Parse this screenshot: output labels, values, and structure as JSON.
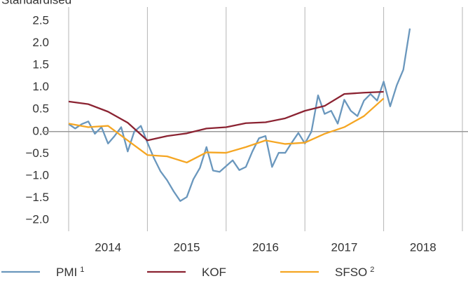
{
  "chart_data": {
    "type": "line",
    "y_axis_label": "Standardised",
    "xlim": [
      2014,
      2019
    ],
    "xticks": [
      2014,
      2015,
      2016,
      2017,
      2018
    ],
    "ylim": [
      -2.3,
      2.75
    ],
    "yticks": [
      2.5,
      {
        "value": 2,
        "label": "2.0"
      },
      1.5,
      {
        "value": 1,
        "label": "1.0"
      },
      0.5,
      {
        "value": 0,
        "label": "0.0"
      },
      {
        "value": -0.5,
        "label": "−0.5"
      },
      {
        "value": -1,
        "label": "−1.0"
      },
      {
        "value": -1.5,
        "label": "−1.5"
      },
      {
        "value": -2,
        "label": "−2.0"
      }
    ],
    "series": [
      {
        "name": "PMI",
        "footnote": "1",
        "color": "#6a97bd",
        "x": [
          2014,
          2014.083,
          2014.167,
          2014.25,
          2014.333,
          2014.417,
          2014.5,
          2014.583,
          2014.667,
          2014.75,
          2014.833,
          2014.917,
          2015,
          2015.083,
          2015.167,
          2015.25,
          2015.333,
          2015.417,
          2015.5,
          2015.583,
          2015.667,
          2015.75,
          2015.833,
          2015.917,
          2016,
          2016.083,
          2016.167,
          2016.25,
          2016.333,
          2016.417,
          2016.5,
          2016.583,
          2016.667,
          2016.75,
          2016.833,
          2016.917,
          2017,
          2017.083,
          2017.167,
          2017.25,
          2017.333,
          2017.417,
          2017.5,
          2017.583,
          2017.667,
          2017.75,
          2017.833,
          2017.917,
          2018,
          2018.083,
          2018.167,
          2018.25,
          2018.333
        ],
        "values": [
          0.17,
          0.07,
          0.17,
          0.23,
          -0.05,
          0.1,
          -0.27,
          -0.1,
          0.1,
          -0.45,
          0.0,
          0.13,
          -0.25,
          -0.6,
          -0.9,
          -1.1,
          -1.35,
          -1.57,
          -1.48,
          -1.08,
          -0.82,
          -0.35,
          -0.88,
          -0.91,
          -0.78,
          -0.65,
          -0.87,
          -0.8,
          -0.45,
          -0.15,
          -0.1,
          -0.8,
          -0.48,
          -0.48,
          -0.25,
          -0.03,
          -0.27,
          0.0,
          0.82,
          0.4,
          0.47,
          0.18,
          0.72,
          0.47,
          0.35,
          0.7,
          0.85,
          0.7,
          1.13,
          0.57,
          1.05,
          1.4,
          2.33
        ]
      },
      {
        "name": "KOF",
        "color": "#8b2332",
        "x": [
          2014,
          2014.25,
          2014.5,
          2014.75,
          2015,
          2015.25,
          2015.5,
          2015.75,
          2016,
          2016.25,
          2016.5,
          2016.75,
          2017,
          2017.25,
          2017.5,
          2017.75,
          2018
        ],
        "values": [
          0.68,
          0.62,
          0.45,
          0.2,
          -0.2,
          -0.1,
          -0.04,
          0.07,
          0.1,
          0.19,
          0.21,
          0.3,
          0.47,
          0.58,
          0.85,
          0.88,
          0.9
        ]
      },
      {
        "name": "SFSO",
        "footnote": "2",
        "color": "#f5a623",
        "x": [
          2014,
          2014.25,
          2014.5,
          2014.75,
          2015,
          2015.25,
          2015.5,
          2015.75,
          2016,
          2016.25,
          2016.5,
          2016.75,
          2017,
          2017.25,
          2017.5,
          2017.75,
          2018
        ],
        "values": [
          0.18,
          0.1,
          0.13,
          -0.2,
          -0.53,
          -0.56,
          -0.7,
          -0.47,
          -0.48,
          -0.35,
          -0.2,
          -0.28,
          -0.25,
          -0.05,
          0.1,
          0.35,
          0.75
        ]
      }
    ]
  }
}
